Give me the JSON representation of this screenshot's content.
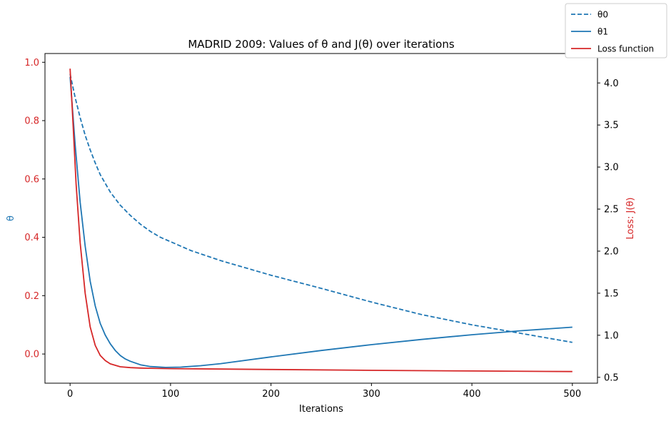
{
  "chart_data": {
    "type": "line",
    "title": "MADRID 2009: Values of θ and J(θ) over iterations",
    "xlabel": "Iterations",
    "ylabel_left": "θ",
    "ylabel_right": "Loss: J(θ)",
    "xlim": [
      -25,
      525
    ],
    "ylim_left": [
      -0.1,
      1.03
    ],
    "ylim_right": [
      0.43,
      4.35
    ],
    "x_ticks": [
      0,
      100,
      200,
      300,
      400,
      500
    ],
    "y_left_ticks": [
      0.0,
      0.2,
      0.4,
      0.6,
      0.8,
      1.0
    ],
    "y_left_tick_labels": [
      "0.0",
      "0.2",
      "0.4",
      "0.6",
      "0.8",
      "1.0"
    ],
    "y_right_ticks": [
      0.5,
      1.0,
      1.5,
      2.0,
      2.5,
      3.0,
      3.5,
      4.0
    ],
    "y_right_tick_labels": [
      "0.5",
      "1.0",
      "1.5",
      "2.0",
      "2.5",
      "3.0",
      "3.5",
      "4.0"
    ],
    "grid": false,
    "legend_placement": "top-right (outside plot)",
    "colors": {
      "theta": "#1f77b4",
      "loss": "#d62728",
      "left_ticks": "#d62728",
      "right_ticks": "#000000"
    },
    "series": [
      {
        "name": "θ0",
        "axis": "left",
        "style": "dashed",
        "color": "#1f77b4",
        "x": [
          0,
          5,
          10,
          15,
          20,
          25,
          30,
          40,
          50,
          60,
          70,
          80,
          90,
          100,
          120,
          150,
          200,
          250,
          300,
          350,
          400,
          450,
          500
        ],
        "y": [
          0.96,
          0.88,
          0.81,
          0.75,
          0.7,
          0.655,
          0.615,
          0.555,
          0.51,
          0.475,
          0.445,
          0.42,
          0.4,
          0.385,
          0.355,
          0.32,
          0.27,
          0.225,
          0.178,
          0.135,
          0.1,
          0.07,
          0.04
        ]
      },
      {
        "name": "θ1",
        "axis": "left",
        "style": "solid",
        "color": "#1f77b4",
        "x": [
          0,
          5,
          10,
          15,
          20,
          25,
          30,
          35,
          40,
          45,
          50,
          55,
          60,
          70,
          80,
          95,
          110,
          130,
          150,
          200,
          250,
          300,
          350,
          400,
          450,
          500
        ],
        "y": [
          0.95,
          0.72,
          0.52,
          0.37,
          0.25,
          0.165,
          0.105,
          0.065,
          0.035,
          0.012,
          -0.005,
          -0.017,
          -0.025,
          -0.037,
          -0.043,
          -0.046,
          -0.045,
          -0.04,
          -0.033,
          -0.01,
          0.012,
          0.032,
          0.05,
          0.066,
          0.08,
          0.092
        ]
      },
      {
        "name": "Loss function",
        "axis": "right",
        "style": "solid",
        "color": "#d62728",
        "x": [
          0,
          3,
          6,
          10,
          15,
          20,
          25,
          30,
          35,
          40,
          50,
          60,
          70,
          80,
          100,
          150,
          200,
          300,
          400,
          500
        ],
        "y": [
          4.17,
          3.5,
          2.8,
          2.1,
          1.5,
          1.1,
          0.88,
          0.76,
          0.7,
          0.66,
          0.625,
          0.615,
          0.61,
          0.607,
          0.603,
          0.598,
          0.593,
          0.583,
          0.575,
          0.568
        ]
      }
    ]
  }
}
